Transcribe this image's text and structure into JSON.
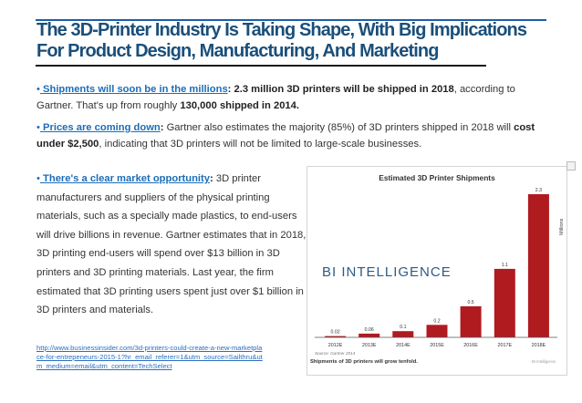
{
  "title": {
    "line1": "The 3D-Printer Industry Is Taking Shape, With Big Implications",
    "line2": "For Product Design, Manufacturing, And Marketing"
  },
  "bullets": [
    {
      "marker": "•",
      "link": " Shipments will soon be in the millions",
      "colon": ":",
      "bold1": " 2.3 million 3D printers will be shipped in 2018",
      "text1": ", according to Gartner. That's up from roughly ",
      "bold2": "130,000 shipped in 2014.",
      "text2": ""
    },
    {
      "marker": "•",
      "link": " Prices are coming down",
      "colon": ":",
      "text1": " Gartner also estimates the majority (85%) of 3D printers shipped in 2018 will ",
      "bold1": "cost under $2,500",
      "text2": ", indicating that 3D printers will not be limited to large-scale businesses."
    },
    {
      "marker": "•",
      "link": " There's a clear market opportunity",
      "colon": ":",
      "text1": " 3D printer manufacturers and suppliers of the physical printing materials, such as a specially made plastics, to end-users will drive billions in revenue. Gartner estimates that in 2018, 3D printing end-users will spend over $13 billion in 3D printers and 3D printing materials. Last year, the firm estimated that 3D printing users spent just over $1 billion in 3D printers and materials."
    }
  ],
  "source_link": "http://www.businessinsider.com/3d-printers-could-create-a-new-marketplace-for-entrepeneurs-2015-1?hr_email_referer=1&utm_source=Sailthru&utm_medium=email&utm_content=TechSelect",
  "chart_data": {
    "type": "bar",
    "title": "Estimated 3D Printer Shipments",
    "categories": [
      "2012E",
      "2013E",
      "2014E",
      "2015E",
      "2016E",
      "2017E",
      "2018E"
    ],
    "values": [
      0.02,
      0.06,
      0.1,
      0.2,
      0.5,
      1.1,
      2.3
    ],
    "value_labels": [
      "0.02",
      "0.06",
      "0.1",
      "0.2",
      "0.5",
      "1.1",
      "2.3"
    ],
    "ylabel": "Millions",
    "ylim": [
      0,
      2.3
    ],
    "watermark": "BI INTELLIGENCE",
    "source_note": "Source: Gartner 2014",
    "caption": "Shipments of 3D printers will grow tenfold.",
    "corner_mark": "BI Intelligence",
    "colors": {
      "bar": "#b01b20",
      "axis": "#555555",
      "watermark": "#2d5b86"
    }
  }
}
